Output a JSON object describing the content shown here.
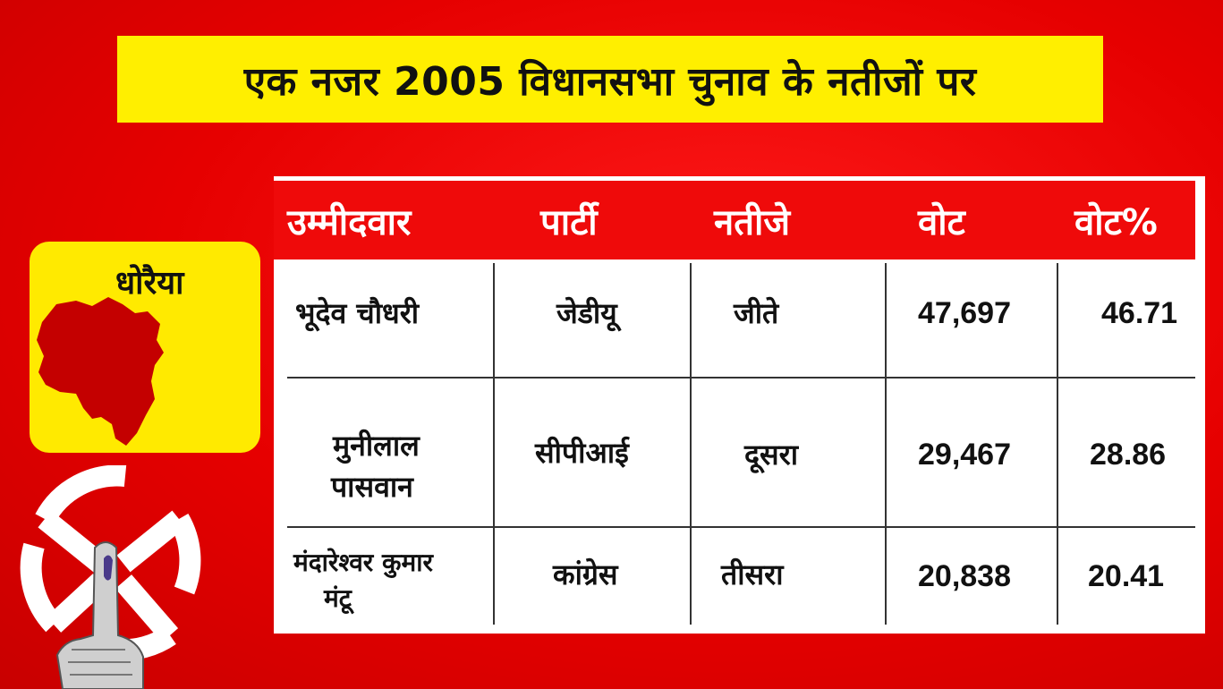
{
  "title": "एक नजर 2005 विधानसभा चुनाव के नतीजों पर",
  "constituency": {
    "name": "धोरैया",
    "map_color": "#c40000",
    "card_color": "#ffea00"
  },
  "table": {
    "headers": [
      "उम्मीदवार",
      "पार्टी",
      "नतीजे",
      "वोट",
      "वोट%"
    ],
    "rows": [
      {
        "candidate": [
          "भूदेव चौधरी"
        ],
        "party": "जेडीयू",
        "result": "जीते",
        "votes": "47,697",
        "vote_pct": "46.71"
      },
      {
        "candidate": [
          "मुनीलाल",
          "पासवान"
        ],
        "party": "सीपीआई",
        "result": "दूसरा",
        "votes": "29,467",
        "vote_pct": "28.86"
      },
      {
        "candidate": [
          "मंदारेश्वर कुमार",
          "मंटू"
        ],
        "party": "कांग्रेस",
        "result": "तीसरा",
        "votes": "20,838",
        "vote_pct": "20.41"
      }
    ],
    "header_color": "#ef0a0a"
  },
  "colors": {
    "background": "#e60000",
    "title_bar": "#ffef00"
  },
  "icons": [
    "ballot-swastika-symbol-icon",
    "inked-finger-icon",
    "constituency-map-icon"
  ]
}
